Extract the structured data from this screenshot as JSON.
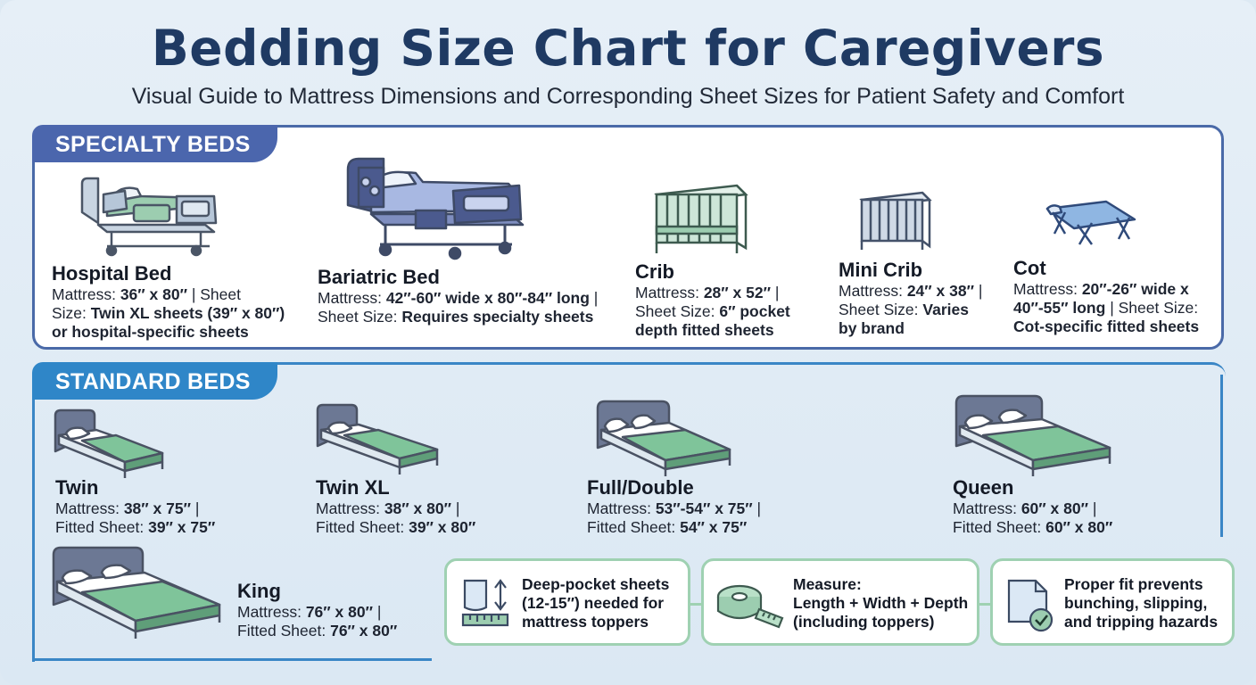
{
  "header": {
    "title": "Bedding Size Chart for Caregivers",
    "subtitle": "Visual Guide to Mattress Dimensions and Corresponding Sheet Sizes for Patient Safety and Comfort"
  },
  "colors": {
    "specialty_accent": "#4b66ad",
    "standard_accent": "#2f86c8",
    "sheet_green": "#7fc49a",
    "tip_border": "#9fd1b2",
    "title_navy": "#1f3a63"
  },
  "specialty": {
    "heading": "SPECIALTY BEDS",
    "items": [
      {
        "name": "Hospital Bed",
        "icon": "hospital-bed-icon",
        "l1a": "Mattress: ",
        "l1b": "36″ x 80″",
        "l1c": " | Sheet",
        "l2a": "Size: ",
        "l2b": "Twin XL sheets (39″ x 80″)",
        "l3b": "or hospital-specific sheets"
      },
      {
        "name": "Bariatric Bed",
        "icon": "bariatric-bed-icon",
        "l1a": "Mattress: ",
        "l1b": "42″-60″ wide x 80″-84″ long",
        "l1c": " |",
        "l2a": "Sheet Size: ",
        "l2b": "Requires specialty sheets"
      },
      {
        "name": "Crib",
        "icon": "crib-icon",
        "l1a": "Mattress: ",
        "l1b": "28″ x 52″",
        "l1c": " |",
        "l2a": "Sheet Size: ",
        "l2b": "6″ pocket",
        "l3b": "depth fitted sheets"
      },
      {
        "name": "Mini Crib",
        "icon": "mini-crib-icon",
        "l1a": "Mattress: ",
        "l1b": "24″ x 38″",
        "l1c": " |",
        "l2a": "Sheet Size: ",
        "l2b": "Varies",
        "l3b": "by brand"
      },
      {
        "name": "Cot",
        "icon": "cot-icon",
        "l1a": "Mattress: ",
        "l1b": "20″-26″ wide x",
        "l2a": "",
        "l2b": "40″-55″ long",
        "l2c": " | Sheet Size:",
        "l3b": "Cot-specific fitted sheets"
      }
    ]
  },
  "standard": {
    "heading": "STANDARD BEDS",
    "items": [
      {
        "name": "Twin",
        "icon": "twin-bed-icon",
        "mattress_label": "Mattress: ",
        "mattress": "38″ x 75″",
        "sep": " |",
        "sheet_label": "Fitted Sheet: ",
        "sheet": "39″ x 75″"
      },
      {
        "name": "Twin XL",
        "icon": "twin-xl-bed-icon",
        "mattress_label": "Mattress: ",
        "mattress": "38″ x 80″",
        "sep": " |",
        "sheet_label": "Fitted Sheet: ",
        "sheet": "39″ x 80″"
      },
      {
        "name": "Full/Double",
        "icon": "full-bed-icon",
        "mattress_label": "Mattress: ",
        "mattress": "53″-54″ x 75″",
        "sep": " |",
        "sheet_label": "Fitted Sheet: ",
        "sheet": "54″ x 75″"
      },
      {
        "name": "Queen",
        "icon": "queen-bed-icon",
        "mattress_label": "Mattress: ",
        "mattress": "60″ x 80″",
        "sep": " |",
        "sheet_label": "Fitted Sheet: ",
        "sheet": "60″ x 80″"
      },
      {
        "name": "King",
        "icon": "king-bed-icon",
        "mattress_label": "Mattress: ",
        "mattress": "76″ x 80″",
        "sep": " |",
        "sheet_label": "Fitted Sheet: ",
        "sheet": "76″ x 80″"
      }
    ]
  },
  "tips": [
    {
      "icon": "sheet-ruler-icon",
      "l1": "Deep-pocket sheets",
      "l2": "(12-15″) needed for",
      "l3": "mattress toppers"
    },
    {
      "icon": "measuring-tape-icon",
      "l1": "Measure:",
      "l2": "Length + Width + Depth",
      "l3": "(including toppers)"
    },
    {
      "icon": "fitted-sheet-check-icon",
      "l1": "Proper fit prevents",
      "l2": "bunching, slipping,",
      "l3": "and tripping hazards"
    }
  ]
}
